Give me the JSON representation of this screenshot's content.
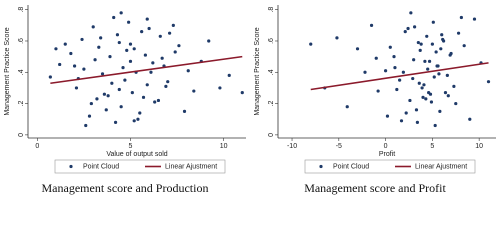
{
  "chart_data": [
    {
      "type": "scatter",
      "caption": "Management score and Production",
      "x_label": "Value of output sold",
      "y_label": "Management Practice Score",
      "xlim": [
        -0.5,
        11.2
      ],
      "xticks": [
        0,
        5,
        10
      ],
      "ylim": [
        -0.02,
        0.83
      ],
      "yticks": [
        0,
        {
          "value": 0.2,
          "label": ".2"
        },
        {
          "value": 0.4,
          "label": ".4"
        },
        {
          "value": 0.6,
          "label": ".6"
        },
        {
          "value": 0.8,
          "label": ".8"
        }
      ],
      "series": [
        {
          "name": "Point Cloud",
          "color": "#1f3a68",
          "type": "scatter",
          "x": [
            1.2,
            2.1,
            3.4,
            4.5,
            5.2,
            6.1,
            7.3,
            8.4,
            2.8,
            3.9,
            4.7,
            5.6,
            6.5,
            3.1,
            4.2,
            5.0,
            5.9,
            2.5,
            3.6,
            4.9,
            6.8,
            7.9,
            9.2,
            10.3,
            1.8,
            2.9,
            4.1,
            5.4,
            6.2,
            7.0,
            3.3,
            4.4,
            5.3,
            6.0,
            2.2,
            3.7,
            4.8,
            5.7,
            6.6,
            8.8,
            1.5,
            2.6,
            3.5,
            4.3,
            5.1,
            5.8,
            6.9,
            7.6,
            4.6,
            5.5,
            3.0,
            4.0,
            5.0,
            6.3,
            7.4,
            2.4,
            3.8,
            4.5,
            9.8,
            11.0,
            0.7,
            1.0,
            6.7,
            8.1,
            5.2,
            4.4,
            3.2,
            2.0,
            7.1,
            5.9
          ],
          "values": [
            0.45,
            0.3,
            0.62,
            0.18,
            0.55,
            0.4,
            0.7,
            0.28,
            0.12,
            0.5,
            0.35,
            0.66,
            0.22,
            0.48,
            0.08,
            0.58,
            0.32,
            0.42,
            0.26,
            0.72,
            0.44,
            0.15,
            0.6,
            0.38,
            0.52,
            0.2,
            0.75,
            0.1,
            0.46,
            0.34,
            0.56,
            0.29,
            0.4,
            0.68,
            0.36,
            0.16,
            0.54,
            0.24,
            0.63,
            0.47,
            0.58,
            0.06,
            0.39,
            0.64,
            0.27,
            0.51,
            0.31,
            0.57,
            0.43,
            0.14,
            0.69,
            0.33,
            0.47,
            0.21,
            0.53,
            0.61,
            0.25,
            0.78,
            0.3,
            0.27,
            0.37,
            0.55,
            0.49,
            0.41,
            0.09,
            0.59,
            0.23,
            0.44,
            0.65,
            0.74
          ]
        },
        {
          "name": "Linear Ajustment",
          "color": "#8b1a2b",
          "type": "line",
          "x": [
            0.7,
            11.0
          ],
          "values": [
            0.33,
            0.5
          ]
        }
      ]
    },
    {
      "type": "scatter",
      "caption": "Management score and Profit",
      "x_label": "Profit",
      "y_label": "Management Practice Score",
      "xlim": [
        -11.5,
        11.8
      ],
      "xticks": [
        -10,
        -5,
        0,
        5,
        10
      ],
      "ylim": [
        -0.02,
        0.83
      ],
      "yticks": [
        0,
        {
          "value": 0.2,
          "label": ".2"
        },
        {
          "value": 0.4,
          "label": ".4"
        },
        {
          "value": 0.6,
          "label": ".6"
        },
        {
          "value": 0.8,
          "label": ".8"
        }
      ],
      "series": [
        {
          "name": "Point Cloud",
          "color": "#1f3a68",
          "type": "scatter",
          "x": [
            -8.0,
            -6.5,
            -5.2,
            -4.1,
            -3.0,
            -2.2,
            -1.5,
            -0.8,
            0.2,
            0.9,
            1.5,
            2.1,
            2.6,
            3.0,
            3.4,
            3.8,
            4.1,
            4.5,
            4.8,
            5.1,
            5.5,
            5.8,
            6.2,
            6.6,
            7.0,
            7.5,
            8.1,
            9.0,
            10.2,
            11.0,
            0.5,
            1.2,
            1.9,
            2.4,
            2.9,
            3.3,
            3.7,
            4.0,
            4.4,
            4.7,
            5.0,
            5.3,
            5.7,
            6.0,
            6.4,
            6.9,
            7.3,
            8.4,
            1.0,
            2.2,
            3.1,
            3.6,
            4.2,
            4.9,
            5.4,
            6.1,
            6.7,
            2.7,
            3.9,
            4.6,
            5.2,
            5.9,
            -1.0,
            0.0,
            1.7,
            3.5,
            4.3,
            5.6,
            7.8,
            9.5
          ],
          "values": [
            0.58,
            0.3,
            0.62,
            0.18,
            0.55,
            0.4,
            0.7,
            0.28,
            0.12,
            0.5,
            0.35,
            0.66,
            0.22,
            0.48,
            0.08,
            0.58,
            0.32,
            0.42,
            0.26,
            0.72,
            0.44,
            0.15,
            0.6,
            0.38,
            0.52,
            0.2,
            0.75,
            0.1,
            0.46,
            0.34,
            0.56,
            0.29,
            0.4,
            0.68,
            0.36,
            0.16,
            0.54,
            0.24,
            0.63,
            0.47,
            0.58,
            0.06,
            0.39,
            0.64,
            0.27,
            0.51,
            0.31,
            0.57,
            0.43,
            0.14,
            0.69,
            0.33,
            0.47,
            0.21,
            0.53,
            0.61,
            0.25,
            0.78,
            0.3,
            0.27,
            0.37,
            0.55,
            0.49,
            0.41,
            0.09,
            0.59,
            0.23,
            0.44,
            0.65,
            0.74
          ]
        },
        {
          "name": "Linear Ajustment",
          "color": "#8b1a2b",
          "type": "line",
          "x": [
            -8.0,
            11.0
          ],
          "values": [
            0.29,
            0.46
          ]
        }
      ]
    }
  ]
}
